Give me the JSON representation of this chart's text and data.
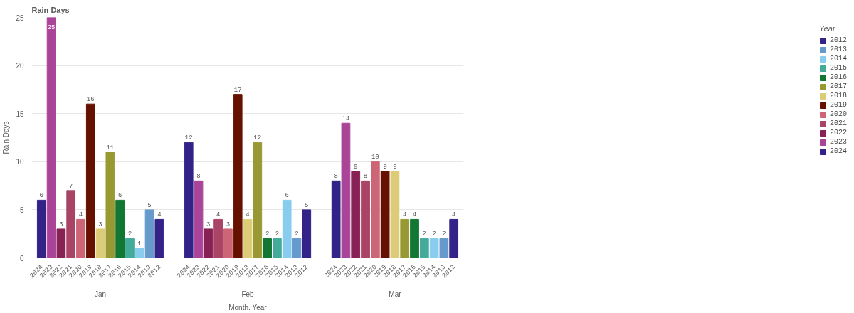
{
  "chart_data": {
    "type": "bar",
    "title": "Rain Days",
    "xlabel": "Month. Year",
    "ylabel": "Rain Days",
    "legend_title": "Year",
    "categories": [
      "Jan",
      "Feb",
      "Mar"
    ],
    "series": [
      {
        "name": "2024",
        "color": "#332288",
        "values": [
          6,
          12,
          8
        ]
      },
      {
        "name": "2023",
        "color": "#aa4499",
        "values": [
          25,
          8,
          14
        ]
      },
      {
        "name": "2022",
        "color": "#882255",
        "values": [
          3,
          3,
          9
        ]
      },
      {
        "name": "2021",
        "color": "#aa4466",
        "values": [
          7,
          4,
          8
        ]
      },
      {
        "name": "2020",
        "color": "#cc6677",
        "values": [
          4,
          3,
          10
        ]
      },
      {
        "name": "2019",
        "color": "#661100",
        "values": [
          16,
          17,
          9
        ]
      },
      {
        "name": "2018",
        "color": "#ddcc77",
        "values": [
          3,
          4,
          9
        ]
      },
      {
        "name": "2017",
        "color": "#999933",
        "values": [
          11,
          12,
          4
        ]
      },
      {
        "name": "2016",
        "color": "#117733",
        "values": [
          6,
          2,
          4
        ]
      },
      {
        "name": "2015",
        "color": "#44aa99",
        "values": [
          2,
          2,
          2
        ]
      },
      {
        "name": "2014",
        "color": "#88ccee",
        "values": [
          1,
          6,
          2
        ]
      },
      {
        "name": "2013",
        "color": "#6699cc",
        "values": [
          5,
          2,
          2
        ]
      },
      {
        "name": "2012",
        "color": "#332288",
        "values": [
          4,
          5,
          4
        ]
      }
    ],
    "ylim": [
      0,
      25
    ],
    "yticks": [
      0,
      5,
      10,
      15,
      20,
      25
    ],
    "grid": "y",
    "legend": "right",
    "data_labels": true
  }
}
